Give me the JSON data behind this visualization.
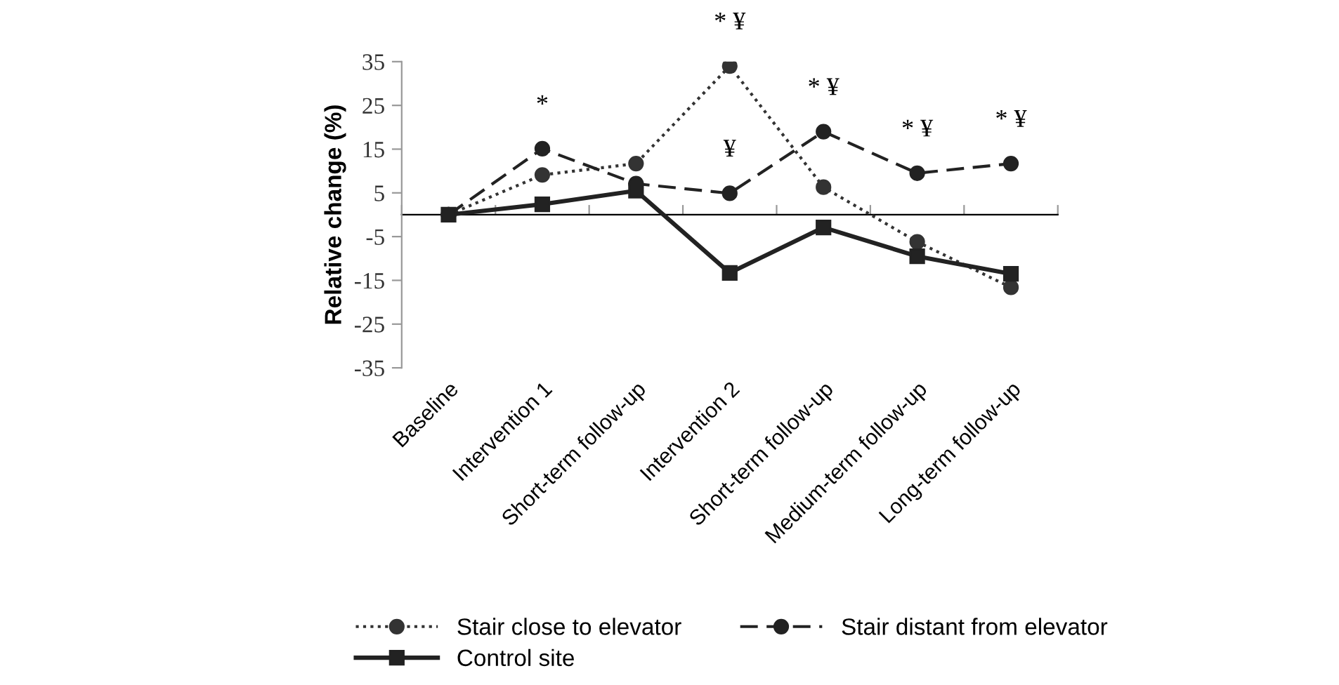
{
  "chart_data": {
    "type": "line",
    "ylabel": "Relative change (%)",
    "categories": [
      "Baseline",
      "Intervention 1",
      "Short-term follow-up",
      "Intervention 2",
      "Short-term follow-up",
      "Medium-term follow-up",
      "Long-term follow-up"
    ],
    "series": [
      {
        "name": "Stair close to elevator",
        "color": "#333333",
        "line_style": "dotted",
        "marker": "circle",
        "values": [
          0,
          9.1,
          11.7,
          34,
          6.3,
          -6.2,
          -16.6
        ]
      },
      {
        "name": "Stair distant from elevator",
        "color": "#222222",
        "line_style": "dashed",
        "marker": "circle",
        "values": [
          0,
          15.1,
          7.1,
          4.9,
          19,
          9.5,
          11.7
        ]
      },
      {
        "name": "Control site",
        "color": "#222222",
        "line_style": "solid",
        "marker": "square",
        "values": [
          0,
          2.4,
          5.5,
          -13.3,
          -2.9,
          -9.5,
          -13.5
        ]
      }
    ],
    "ylim": [
      -35,
      35
    ],
    "yticks": [
      -35,
      -25,
      -15,
      -5,
      5,
      15,
      25,
      35
    ],
    "grid": false,
    "legend": "bottom",
    "annotations": [
      {
        "text": "*",
        "x": "Intervention 1",
        "y": 15.1
      },
      {
        "text": "* ¥",
        "x": "Intervention 2",
        "y": 34
      },
      {
        "text": "¥",
        "x": "Intervention 2",
        "y": 4.9
      },
      "* ¥",
      {
        "text": "* ¥",
        "x": "Medium-term follow-up",
        "y": 9.5
      },
      {
        "text": "* ¥",
        "x": "Long-term follow-up",
        "y": 11.7
      }
    ]
  }
}
